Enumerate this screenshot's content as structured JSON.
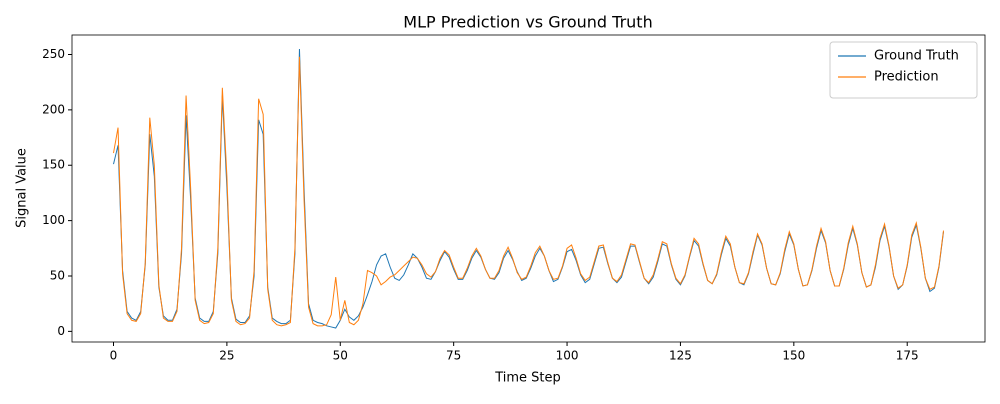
{
  "chart_data": {
    "type": "line",
    "title": "MLP Prediction vs Ground Truth",
    "xlabel": "Time Step",
    "ylabel": "Signal Value",
    "x": [
      0,
      1,
      2,
      3,
      4,
      5,
      6,
      7,
      8,
      9,
      10,
      11,
      12,
      13,
      14,
      15,
      16,
      17,
      18,
      19,
      20,
      21,
      22,
      23,
      24,
      25,
      26,
      27,
      28,
      29,
      30,
      31,
      32,
      33,
      34,
      35,
      36,
      37,
      38,
      39,
      40,
      41,
      42,
      43,
      44,
      45,
      46,
      47,
      48,
      49,
      50,
      51,
      52,
      53,
      54,
      55,
      56,
      57,
      58,
      59,
      60,
      61,
      62,
      63,
      64,
      65,
      66,
      67,
      68,
      69,
      70,
      71,
      72,
      73,
      74,
      75,
      76,
      77,
      78,
      79,
      80,
      81,
      82,
      83,
      84,
      85,
      86,
      87,
      88,
      89,
      90,
      91,
      92,
      93,
      94,
      95,
      96,
      97,
      98,
      99,
      100,
      101,
      102,
      103,
      104,
      105,
      106,
      107,
      108,
      109,
      110,
      111,
      112,
      113,
      114,
      115,
      116,
      117,
      118,
      119,
      120,
      121,
      122,
      123,
      124,
      125,
      126,
      127,
      128,
      129,
      130,
      131,
      132,
      133,
      134,
      135,
      136,
      137,
      138,
      139,
      140,
      141,
      142,
      143,
      144,
      145,
      146,
      147,
      148,
      149,
      150,
      151,
      152,
      153,
      154,
      155,
      156,
      157,
      158,
      159,
      160,
      161,
      162,
      163,
      164,
      165,
      166,
      167,
      168,
      169,
      170,
      171,
      172,
      173,
      174,
      175,
      176,
      177,
      178,
      179,
      180,
      181,
      182,
      183
    ],
    "series": [
      {
        "name": "Ground Truth",
        "color": "#1f77b4",
        "values": [
          151,
          168,
          55,
          18,
          12,
          10,
          18,
          60,
          178,
          140,
          40,
          14,
          10,
          10,
          20,
          70,
          195,
          120,
          30,
          12,
          9,
          9,
          18,
          70,
          213,
          130,
          30,
          11,
          8,
          8,
          14,
          50,
          191,
          178,
          40,
          12,
          9,
          7,
          7,
          10,
          70,
          255,
          130,
          25,
          10,
          8,
          7,
          5,
          4,
          3,
          10,
          20,
          13,
          10,
          14,
          22,
          33,
          45,
          60,
          68,
          70,
          58,
          48,
          46,
          51,
          60,
          70,
          66,
          58,
          48,
          47,
          54,
          64,
          72,
          67,
          56,
          47,
          47,
          55,
          66,
          73,
          67,
          56,
          48,
          47,
          53,
          66,
          73,
          65,
          54,
          46,
          48,
          57,
          68,
          75,
          68,
          55,
          45,
          47,
          58,
          72,
          74,
          64,
          51,
          44,
          47,
          61,
          75,
          76,
          61,
          48,
          44,
          49,
          63,
          77,
          77,
          62,
          48,
          43,
          49,
          63,
          79,
          77,
          60,
          47,
          42,
          50,
          67,
          82,
          77,
          60,
          46,
          43,
          51,
          69,
          84,
          77,
          58,
          44,
          42,
          52,
          70,
          87,
          78,
          57,
          43,
          42,
          52,
          72,
          88,
          78,
          56,
          41,
          42,
          55,
          75,
          91,
          80,
          55,
          41,
          41,
          56,
          78,
          93,
          78,
          53,
          40,
          42,
          58,
          82,
          95,
          76,
          50,
          38,
          42,
          59,
          85,
          96,
          75,
          48,
          36,
          39,
          58,
          90
        ]
      },
      {
        "name": "Prediction",
        "color": "#ff7f0e",
        "values": [
          161,
          184,
          52,
          16,
          10,
          9,
          16,
          62,
          193,
          150,
          42,
          12,
          9,
          9,
          18,
          75,
          213,
          130,
          28,
          10,
          7,
          8,
          16,
          75,
          220,
          140,
          28,
          9,
          6,
          7,
          12,
          55,
          210,
          196,
          38,
          10,
          6,
          5,
          6,
          8,
          75,
          248,
          120,
          22,
          7,
          5,
          5,
          6,
          15,
          49,
          10,
          28,
          8,
          6,
          10,
          25,
          55,
          53,
          50,
          42,
          45,
          49,
          51,
          55,
          59,
          63,
          67,
          66,
          60,
          52,
          49,
          54,
          66,
          73,
          69,
          58,
          48,
          48,
          57,
          68,
          75,
          68,
          56,
          48,
          48,
          55,
          68,
          76,
          66,
          53,
          47,
          49,
          59,
          71,
          77,
          68,
          55,
          47,
          48,
          59,
          75,
          78,
          66,
          52,
          46,
          49,
          63,
          77,
          78,
          62,
          48,
          45,
          51,
          65,
          79,
          78,
          63,
          48,
          44,
          51,
          65,
          81,
          79,
          61,
          48,
          43,
          51,
          68,
          84,
          79,
          61,
          46,
          43,
          52,
          71,
          86,
          79,
          58,
          44,
          43,
          53,
          72,
          88,
          79,
          57,
          43,
          42,
          53,
          74,
          90,
          79,
          56,
          41,
          42,
          56,
          77,
          93,
          81,
          55,
          41,
          41,
          57,
          80,
          95,
          79,
          53,
          40,
          42,
          60,
          84,
          97,
          77,
          50,
          39,
          42,
          60,
          87,
          98,
          76,
          48,
          38,
          40,
          59,
          91
        ]
      }
    ],
    "xlim": [
      -9.15,
      192.15
    ],
    "xticks": [
      0,
      25,
      50,
      75,
      100,
      125,
      150,
      175
    ],
    "ylim": [
      -9.6,
      267.6
    ],
    "yticks": [
      0,
      50,
      100,
      150,
      200,
      250
    ],
    "legend": "upper right"
  }
}
